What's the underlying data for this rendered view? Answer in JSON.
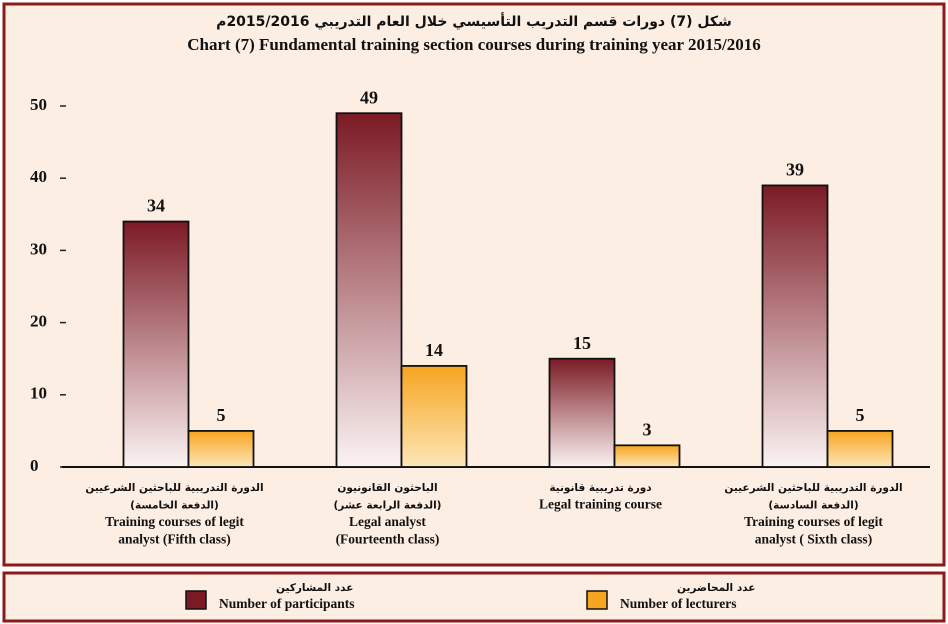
{
  "chart_data": {
    "type": "bar",
    "title": "شكل (7) دورات قسم التدريب التأسيسي خلال العام التدريبي 2015/2016م",
    "subtitle": "Chart (7) Fundamental training section courses during training year 2015/2016",
    "categories": [
      [
        "الدورة التدريبية للباحثين الشرعيين",
        "(الدفعة الخامسة)",
        "Training courses of legit",
        "analyst (Fifth class)"
      ],
      [
        "الباحثون القانونيون",
        "(الدفعة الرابعة عشر)",
        "Legal analyst",
        "(Fourteenth class)"
      ],
      [
        "دورة تدريبية قانونية",
        "Legal training course"
      ],
      [
        "الدورة التدريبية للباحثين الشرعيين",
        "(الدفعة السادسة)",
        "Training courses of legit",
        "analyst ( Sixth class)"
      ]
    ],
    "series": [
      {
        "name": [
          "عدد المشاركين",
          "Number of participants"
        ],
        "color": "#7b1a24",
        "values": [
          34,
          49,
          15,
          39
        ]
      },
      {
        "name": [
          "عدد المحاضرين",
          "Number of lecturers"
        ],
        "color": "#f6a520",
        "values": [
          5,
          14,
          3,
          5
        ]
      }
    ],
    "ylim": [
      0,
      50
    ],
    "yticks": [
      0,
      10,
      20,
      30,
      40,
      50
    ]
  }
}
